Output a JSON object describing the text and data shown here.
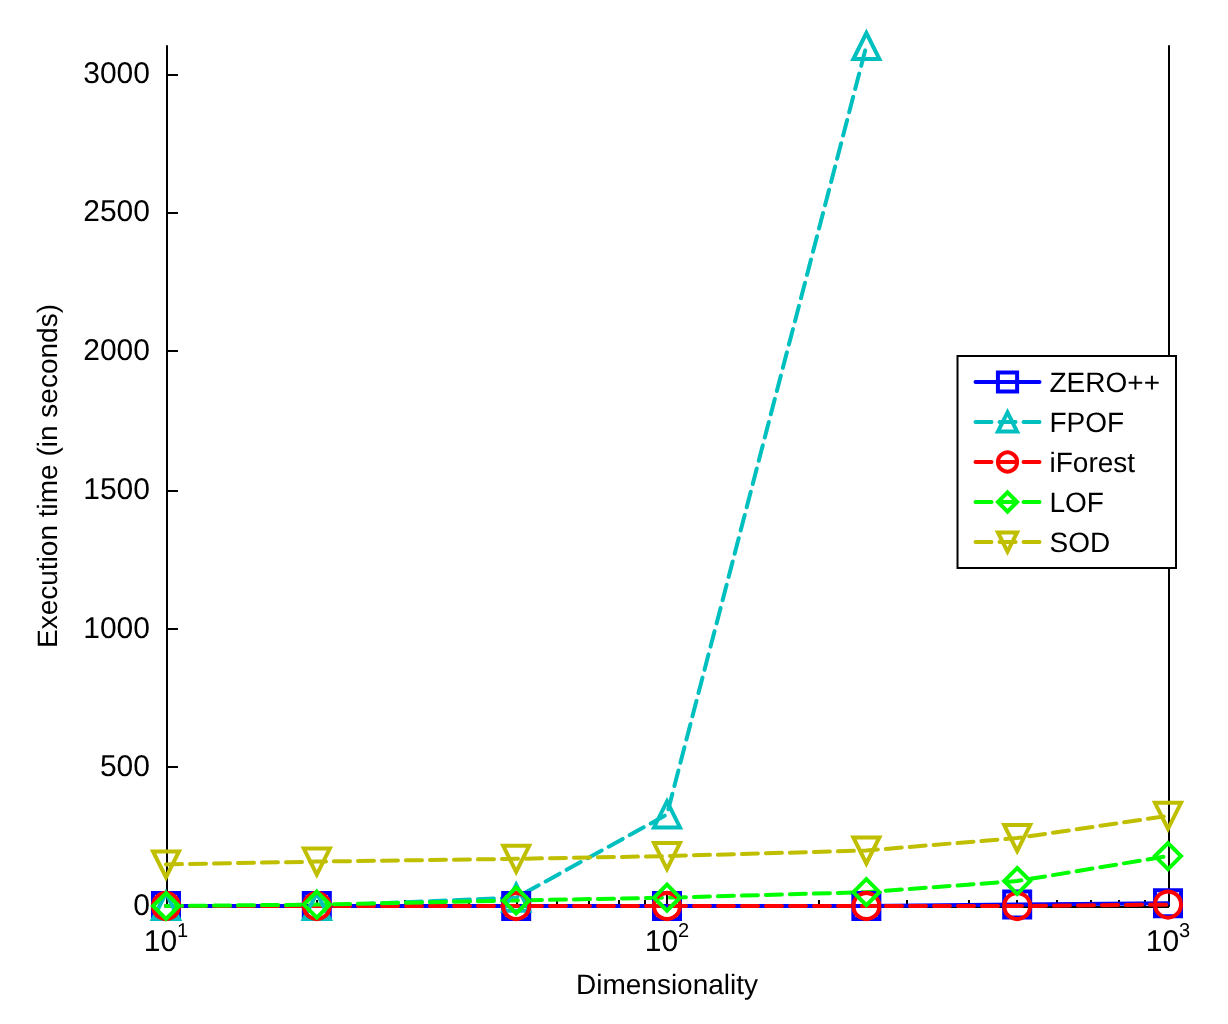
{
  "chart_data": {
    "type": "line",
    "xlabel": "Dimensionality",
    "ylabel": "Execution time (in seconds)",
    "x": [
      10,
      20,
      50,
      100,
      250,
      500,
      1000
    ],
    "log": "x",
    "xlim": [
      10,
      1000
    ],
    "xticks": [
      {
        "value": 10,
        "label": "10$^{1}$"
      },
      {
        "value": 100,
        "label": "10$^{2}$"
      },
      {
        "value": 1000,
        "label": "10$^{3}$"
      }
    ],
    "ylim": [
      0,
      3100
    ],
    "yticks": [
      0,
      500,
      1000,
      1500,
      2000,
      2500,
      3000
    ],
    "grid": false,
    "legend": "right",
    "series": [
      {
        "name": "ZERO++",
        "color": "#0000ff",
        "marker": "square",
        "line_style": "solid",
        "values": [
          0,
          0,
          0,
          0,
          0,
          5,
          10
        ]
      },
      {
        "name": "FPOF",
        "color": "#00bfbf",
        "marker": "triangle",
        "line_style": "dashed",
        "values": [
          0,
          0,
          30,
          330,
          3100,
          null,
          null
        ]
      },
      {
        "name": "iForest",
        "color": "#ff0000",
        "marker": "circle",
        "line_style": "dashed",
        "values": [
          0,
          0,
          0,
          0,
          0,
          0,
          5
        ]
      },
      {
        "name": "LOF",
        "color": "#00ff00",
        "marker": "diamond",
        "line_style": "dashed",
        "values": [
          0,
          5,
          20,
          30,
          50,
          90,
          180
        ]
      },
      {
        "name": "SOD",
        "color": "#bfbf00",
        "marker": "triangle-down",
        "line_style": "dashed",
        "values": [
          150,
          160,
          170,
          180,
          200,
          245,
          325
        ]
      }
    ]
  }
}
